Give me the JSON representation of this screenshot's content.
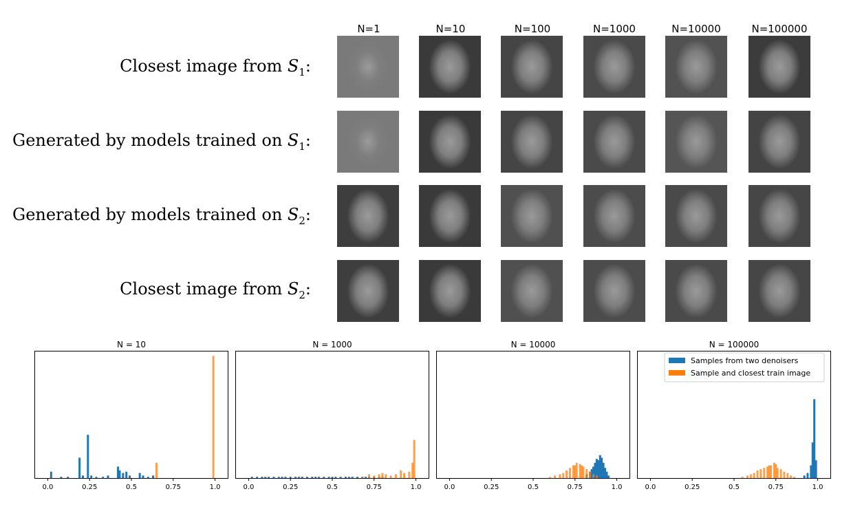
{
  "columns": [
    "N=1",
    "N=10",
    "N=100",
    "N=1000",
    "N=10000",
    "N=100000"
  ],
  "rows": [
    {
      "prefix": "Closest image from ",
      "var": "S",
      "sub": "1",
      "suffix": ":"
    },
    {
      "prefix": "Generated by models trained on ",
      "var": "S",
      "sub": "1",
      "suffix": ":"
    },
    {
      "prefix": "Generated by models trained on ",
      "var": "S",
      "sub": "2",
      "suffix": ":"
    },
    {
      "prefix": "Closest image from ",
      "var": "S",
      "sub": "2",
      "suffix": ":"
    }
  ],
  "face_tones": [
    [
      "#7a7a7a",
      "#3a3a3a",
      "#454545",
      "#4a4a4a",
      "#525252",
      "#3c3c3c"
    ],
    [
      "#7a7a7a",
      "#3a3a3a",
      "#454545",
      "#4a4a4a",
      "#555555",
      "#444444"
    ],
    [
      "#3e3e3e",
      "#3a3a3a",
      "#505050",
      "#4c4c4c",
      "#4a4a4a",
      "#464646"
    ],
    [
      "#3e3e3e",
      "#3a3a3a",
      "#505050",
      "#4c4c4c",
      "#4a4a4a",
      "#464646"
    ]
  ],
  "colors": {
    "blue": "#1f77b4",
    "orange": "#ff7f0e"
  },
  "legend": [
    "Samples from two denoisers",
    "Sample and closest train image"
  ],
  "chart_data": [
    {
      "type": "bar",
      "title": "N = 10",
      "xticks": [
        "0.0",
        "0.25",
        "0.5",
        "0.75",
        "1.0"
      ],
      "xlim": [
        -0.08,
        1.08
      ],
      "ylim": [
        0,
        1.0
      ],
      "series": [
        {
          "values": [
            [
              0.02,
              0.05
            ],
            [
              0.08,
              0.01
            ],
            [
              0.12,
              0.01
            ],
            [
              0.19,
              0.16
            ],
            [
              0.21,
              0.02
            ],
            [
              0.24,
              0.34
            ],
            [
              0.26,
              0.02
            ],
            [
              0.29,
              0.01
            ],
            [
              0.33,
              0.01
            ],
            [
              0.36,
              0.02
            ],
            [
              0.42,
              0.09
            ],
            [
              0.43,
              0.06
            ],
            [
              0.45,
              0.04
            ],
            [
              0.47,
              0.05
            ],
            [
              0.49,
              0.02
            ],
            [
              0.55,
              0.04
            ],
            [
              0.57,
              0.02
            ],
            [
              0.6,
              0.01
            ],
            [
              0.63,
              0.02
            ]
          ]
        },
        {
          "values": [
            [
              0.65,
              0.12
            ],
            [
              0.99,
              0.96
            ]
          ]
        }
      ]
    },
    {
      "type": "bar",
      "title": "N = 1000",
      "xticks": [
        "0.0",
        "0.25",
        "0.5",
        "0.75",
        "1.0"
      ],
      "xlim": [
        -0.08,
        1.08
      ],
      "ylim": [
        0,
        1.0
      ],
      "series": [
        {
          "values": [
            [
              0.02,
              0.01
            ],
            [
              0.05,
              0.01
            ],
            [
              0.08,
              0.01
            ],
            [
              0.1,
              0.01
            ],
            [
              0.12,
              0.01
            ],
            [
              0.15,
              0.01
            ],
            [
              0.18,
              0.01
            ],
            [
              0.2,
              0.01
            ],
            [
              0.22,
              0.01
            ],
            [
              0.25,
              0.01
            ],
            [
              0.28,
              0.01
            ],
            [
              0.3,
              0.01
            ],
            [
              0.32,
              0.01
            ],
            [
              0.35,
              0.01
            ],
            [
              0.38,
              0.01
            ],
            [
              0.4,
              0.01
            ],
            [
              0.42,
              0.01
            ],
            [
              0.45,
              0.01
            ],
            [
              0.48,
              0.01
            ],
            [
              0.5,
              0.01
            ],
            [
              0.52,
              0.01
            ],
            [
              0.55,
              0.01
            ],
            [
              0.58,
              0.01
            ],
            [
              0.6,
              0.01
            ],
            [
              0.62,
              0.01
            ],
            [
              0.65,
              0.01
            ],
            [
              0.68,
              0.01
            ],
            [
              0.7,
              0.01
            ],
            [
              0.72,
              0.01
            ],
            [
              0.75,
              0.01
            ],
            [
              0.78,
              0.01
            ],
            [
              0.8,
              0.01
            ]
          ]
        },
        {
          "values": [
            [
              0.68,
              0.01
            ],
            [
              0.72,
              0.03
            ],
            [
              0.75,
              0.02
            ],
            [
              0.78,
              0.03
            ],
            [
              0.8,
              0.04
            ],
            [
              0.82,
              0.03
            ],
            [
              0.85,
              0.02
            ],
            [
              0.88,
              0.03
            ],
            [
              0.91,
              0.06
            ],
            [
              0.93,
              0.04
            ],
            [
              0.96,
              0.05
            ],
            [
              0.98,
              0.12
            ],
            [
              0.99,
              0.3
            ]
          ]
        }
      ]
    },
    {
      "type": "bar",
      "title": "N = 10000",
      "xticks": [
        "0.0",
        "0.25",
        "0.5",
        "0.75",
        "1.0"
      ],
      "xlim": [
        -0.08,
        1.08
      ],
      "ylim": [
        0,
        1.0
      ],
      "series": [
        {
          "values": [
            [
              0.82,
              0.03
            ],
            [
              0.84,
              0.05
            ],
            [
              0.85,
              0.07
            ],
            [
              0.86,
              0.09
            ],
            [
              0.87,
              0.12
            ],
            [
              0.88,
              0.15
            ],
            [
              0.89,
              0.14
            ],
            [
              0.9,
              0.18
            ],
            [
              0.91,
              0.16
            ],
            [
              0.92,
              0.12
            ],
            [
              0.93,
              0.08
            ],
            [
              0.94,
              0.05
            ],
            [
              0.95,
              0.02
            ]
          ]
        },
        {
          "values": [
            [
              0.6,
              0.01
            ],
            [
              0.63,
              0.02
            ],
            [
              0.66,
              0.03
            ],
            [
              0.68,
              0.04
            ],
            [
              0.7,
              0.06
            ],
            [
              0.72,
              0.08
            ],
            [
              0.74,
              0.1
            ],
            [
              0.75,
              0.1
            ],
            [
              0.76,
              0.12
            ],
            [
              0.78,
              0.11
            ],
            [
              0.79,
              0.1
            ],
            [
              0.8,
              0.09
            ],
            [
              0.82,
              0.07
            ],
            [
              0.84,
              0.05
            ],
            [
              0.86,
              0.03
            ],
            [
              0.88,
              0.02
            ]
          ]
        }
      ]
    },
    {
      "type": "bar",
      "title": "N = 100000",
      "xticks": [
        "0.0",
        "0.25",
        "0.5",
        "0.75",
        "1.0"
      ],
      "xlim": [
        -0.08,
        1.08
      ],
      "ylim": [
        0,
        1.0
      ],
      "series": [
        {
          "values": [
            [
              0.92,
              0.02
            ],
            [
              0.94,
              0.04
            ],
            [
              0.96,
              0.1
            ],
            [
              0.97,
              0.28
            ],
            [
              0.98,
              0.62
            ],
            [
              0.99,
              0.14
            ]
          ]
        },
        {
          "values": [
            [
              0.55,
              0.01
            ],
            [
              0.58,
              0.02
            ],
            [
              0.6,
              0.03
            ],
            [
              0.62,
              0.04
            ],
            [
              0.64,
              0.06
            ],
            [
              0.66,
              0.07
            ],
            [
              0.68,
              0.08
            ],
            [
              0.7,
              0.09
            ],
            [
              0.71,
              0.1
            ],
            [
              0.72,
              0.1
            ],
            [
              0.74,
              0.12
            ],
            [
              0.75,
              0.11
            ],
            [
              0.76,
              0.08
            ],
            [
              0.78,
              0.07
            ],
            [
              0.8,
              0.05
            ],
            [
              0.82,
              0.04
            ],
            [
              0.84,
              0.02
            ],
            [
              0.86,
              0.01
            ]
          ]
        }
      ]
    }
  ]
}
